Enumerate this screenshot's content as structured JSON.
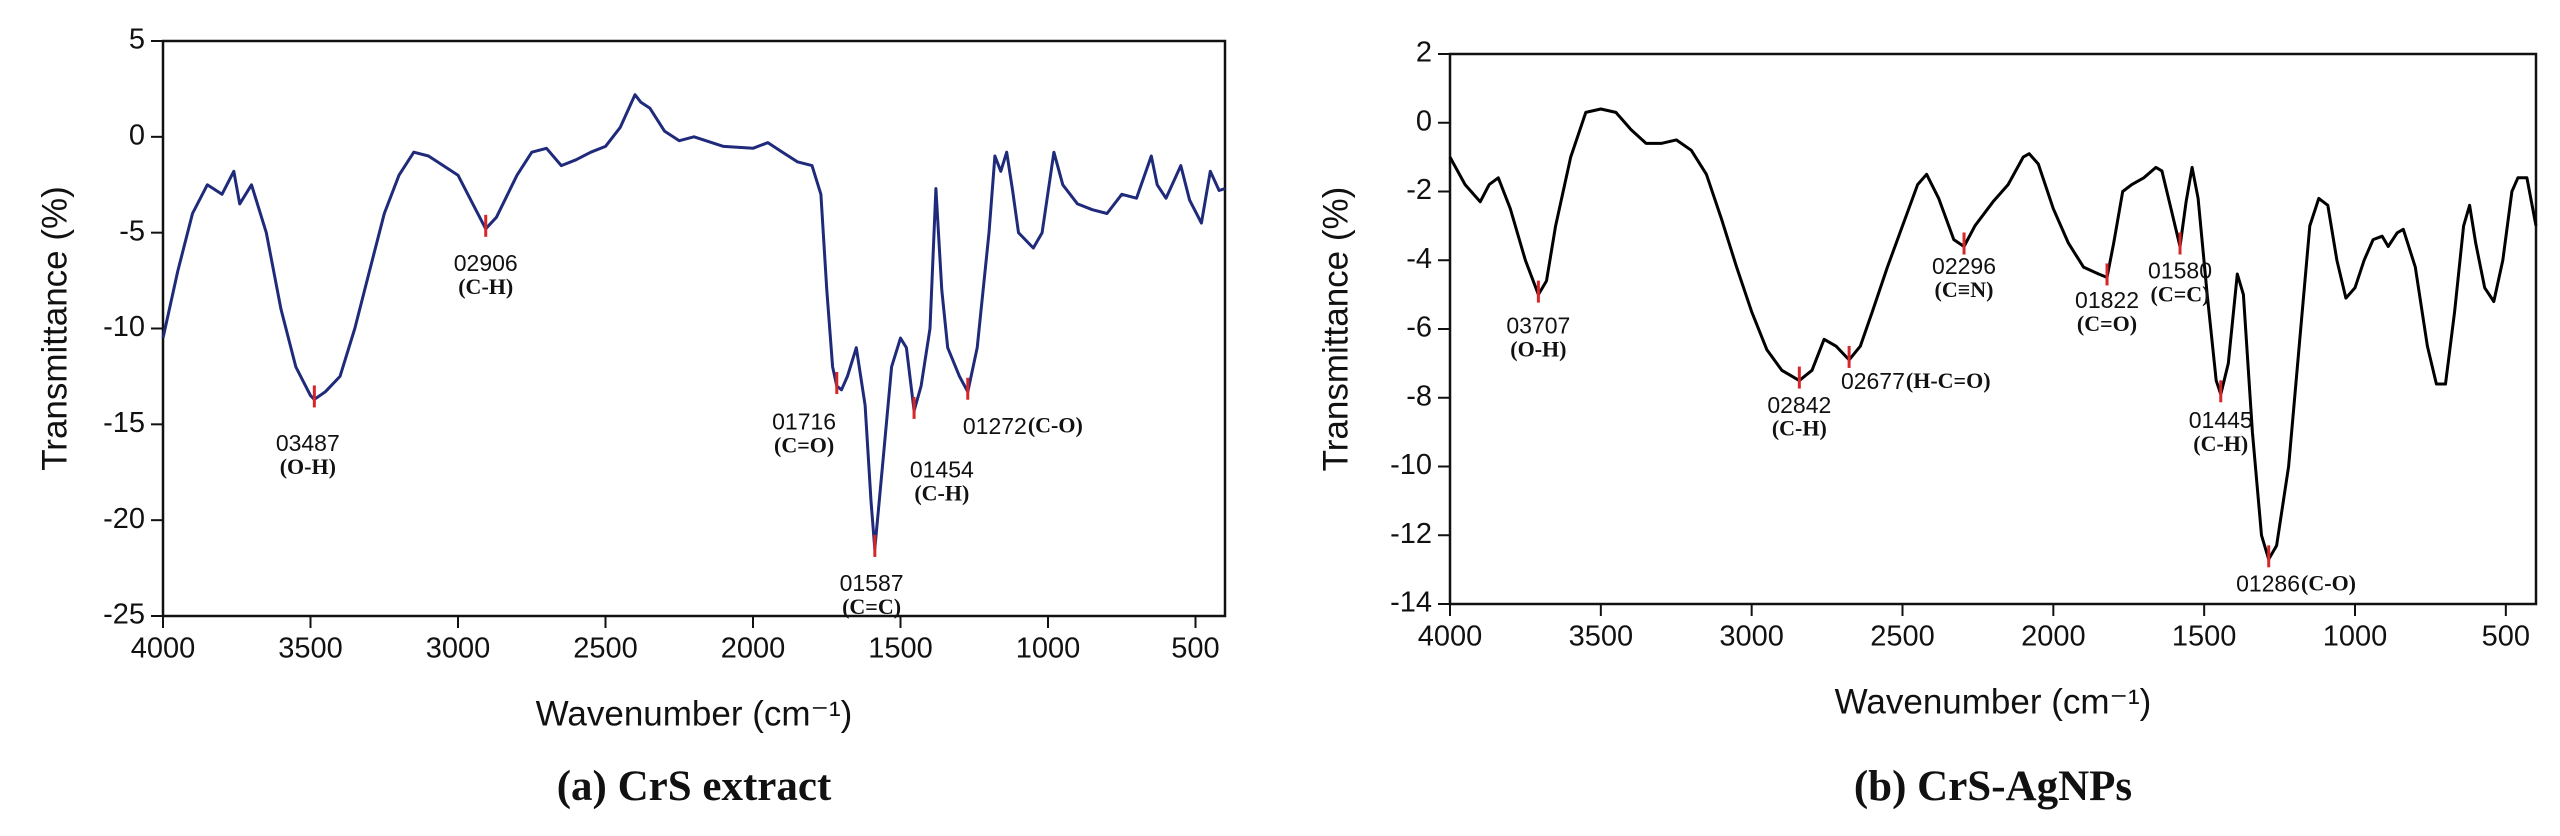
{
  "chart_data": [
    {
      "type": "line",
      "caption": "(a) CrS extract",
      "xlabel": "Wavenumber (cm⁻¹)",
      "ylabel": "Transmittance (%)",
      "color": "#1f2a7a",
      "marker_color": "#d62728",
      "xlim": [
        4000,
        400
      ],
      "ylim": [
        -25,
        5
      ],
      "xticks": [
        4000,
        3500,
        3000,
        2500,
        2000,
        1500,
        1000,
        500
      ],
      "yticks": [
        5,
        0,
        -5,
        -10,
        -15,
        -20,
        -25
      ],
      "x": [
        4000,
        3950,
        3900,
        3850,
        3800,
        3760,
        3740,
        3700,
        3650,
        3600,
        3550,
        3500,
        3487,
        3450,
        3400,
        3350,
        3300,
        3250,
        3200,
        3150,
        3100,
        3050,
        3000,
        2950,
        2906,
        2870,
        2800,
        2750,
        2700,
        2650,
        2600,
        2550,
        2500,
        2450,
        2400,
        2380,
        2350,
        2300,
        2250,
        2200,
        2100,
        2000,
        1950,
        1900,
        1850,
        1800,
        1770,
        1750,
        1730,
        1716,
        1700,
        1680,
        1650,
        1620,
        1600,
        1587,
        1560,
        1530,
        1500,
        1480,
        1454,
        1430,
        1400,
        1380,
        1360,
        1340,
        1300,
        1272,
        1240,
        1200,
        1180,
        1160,
        1140,
        1120,
        1100,
        1050,
        1020,
        980,
        950,
        900,
        850,
        800,
        750,
        700,
        650,
        630,
        600,
        550,
        520,
        480,
        450,
        420,
        400
      ],
      "values": [
        -10.5,
        -7,
        -4,
        -2.5,
        -3,
        -1.8,
        -3.5,
        -2.5,
        -5,
        -9,
        -12,
        -13.5,
        -13.7,
        -13.3,
        -12.5,
        -10,
        -7,
        -4,
        -2,
        -0.8,
        -1,
        -1.5,
        -2,
        -3.5,
        -4.8,
        -4.2,
        -2,
        -0.8,
        -0.6,
        -1.5,
        -1.2,
        -0.8,
        -0.5,
        0.5,
        2.2,
        1.8,
        1.5,
        0.3,
        -0.2,
        0,
        -0.5,
        -0.6,
        -0.3,
        -0.8,
        -1.3,
        -1.5,
        -3,
        -8,
        -12,
        -13,
        -13.2,
        -12.5,
        -11,
        -14,
        -19,
        -21.5,
        -17,
        -12,
        -10.5,
        -11,
        -14.3,
        -13,
        -10,
        -2.7,
        -8,
        -11,
        -12.5,
        -13.3,
        -11,
        -5,
        -1,
        -1.8,
        -0.8,
        -2.8,
        -5,
        -5.8,
        -5,
        -0.8,
        -2.5,
        -3.5,
        -3.8,
        -4,
        -3,
        -3.2,
        -1,
        -2.5,
        -3.2,
        -1.5,
        -3.3,
        -4.5,
        -1.8,
        -2.8,
        -2.7
      ],
      "annotations": [
        {
          "x": 3487,
          "y": -13.7,
          "label": "03487",
          "bond": "(O-H)"
        },
        {
          "x": 2906,
          "y": -4.8,
          "label": "02906",
          "bond": "(C-H)"
        },
        {
          "x": 1716,
          "y": -13,
          "label": "01716",
          "bond": "(C=O)"
        },
        {
          "x": 1587,
          "y": -21.5,
          "label": "01587",
          "bond": "(C=C)"
        },
        {
          "x": 1454,
          "y": -14.3,
          "label": "01454",
          "bond": "(C-H)"
        },
        {
          "x": 1272,
          "y": -13.3,
          "label": "01272",
          "bond": "(C-O)"
        }
      ]
    },
    {
      "type": "line",
      "caption": "(b) CrS-AgNPs",
      "xlabel": "Wavenumber (cm⁻¹)",
      "ylabel": "Transmittance (%)",
      "color": "#000000",
      "marker_color": "#d62728",
      "xlim": [
        4000,
        400
      ],
      "ylim": [
        -14,
        2
      ],
      "xticks": [
        4000,
        3500,
        3000,
        2500,
        2000,
        1500,
        1000,
        500
      ],
      "yticks": [
        2,
        0,
        -2,
        -4,
        -6,
        -8,
        -10,
        -12,
        -14
      ],
      "x": [
        4000,
        3950,
        3900,
        3870,
        3840,
        3800,
        3750,
        3707,
        3680,
        3650,
        3600,
        3550,
        3500,
        3450,
        3400,
        3350,
        3300,
        3250,
        3200,
        3150,
        3100,
        3050,
        3000,
        2950,
        2900,
        2842,
        2800,
        2760,
        2720,
        2677,
        2640,
        2600,
        2550,
        2500,
        2450,
        2420,
        2380,
        2330,
        2296,
        2260,
        2200,
        2150,
        2100,
        2080,
        2050,
        2000,
        1950,
        1900,
        1850,
        1822,
        1800,
        1770,
        1740,
        1700,
        1660,
        1640,
        1610,
        1580,
        1560,
        1540,
        1520,
        1490,
        1460,
        1445,
        1420,
        1390,
        1370,
        1340,
        1310,
        1286,
        1260,
        1220,
        1180,
        1150,
        1120,
        1090,
        1060,
        1030,
        1000,
        970,
        940,
        910,
        890,
        860,
        840,
        800,
        760,
        730,
        700,
        670,
        640,
        620,
        600,
        570,
        540,
        510,
        480,
        460,
        430,
        400
      ],
      "values": [
        -1,
        -1.8,
        -2.3,
        -1.8,
        -1.6,
        -2.5,
        -4,
        -5,
        -4.6,
        -3,
        -1,
        0.3,
        0.4,
        0.3,
        -0.2,
        -0.6,
        -0.6,
        -0.5,
        -0.8,
        -1.5,
        -2.8,
        -4.2,
        -5.5,
        -6.6,
        -7.2,
        -7.5,
        -7.2,
        -6.3,
        -6.5,
        -6.9,
        -6.5,
        -5.5,
        -4.2,
        -3,
        -1.8,
        -1.5,
        -2.2,
        -3.4,
        -3.6,
        -3,
        -2.3,
        -1.8,
        -1,
        -0.9,
        -1.2,
        -2.5,
        -3.5,
        -4.2,
        -4.4,
        -4.5,
        -3.5,
        -2,
        -1.8,
        -1.6,
        -1.3,
        -1.4,
        -2.5,
        -3.6,
        -2.3,
        -1.3,
        -2.2,
        -5,
        -7.5,
        -7.9,
        -7,
        -4.4,
        -5,
        -9,
        -12,
        -12.7,
        -12.3,
        -10,
        -6,
        -3,
        -2.2,
        -2.4,
        -4,
        -5.1,
        -4.8,
        -4,
        -3.4,
        -3.3,
        -3.6,
        -3.2,
        -3.1,
        -4.2,
        -6.5,
        -7.6,
        -7.6,
        -5.5,
        -3,
        -2.4,
        -3.5,
        -4.8,
        -5.2,
        -4,
        -2,
        -1.6,
        -1.6,
        -3
      ],
      "annotations": [
        {
          "x": 3707,
          "y": -5,
          "label": "03707",
          "bond": "(O-H)"
        },
        {
          "x": 2842,
          "y": -7.5,
          "label": "02842",
          "bond": "(C-H)"
        },
        {
          "x": 2677,
          "y": -6.9,
          "label": "02677",
          "bond": "(H-C=O)"
        },
        {
          "x": 2296,
          "y": -3.6,
          "label": "02296",
          "bond": "(C≡N)"
        },
        {
          "x": 1822,
          "y": -4.5,
          "label": "01822",
          "bond": "(C=O)"
        },
        {
          "x": 1580,
          "y": -3.6,
          "label": "01580",
          "bond": "(C=C)"
        },
        {
          "x": 1445,
          "y": -7.9,
          "label": "01445",
          "bond": "(C-H)"
        },
        {
          "x": 1286,
          "y": -12.7,
          "label": "01286",
          "bond": "(C-O)"
        }
      ]
    }
  ]
}
